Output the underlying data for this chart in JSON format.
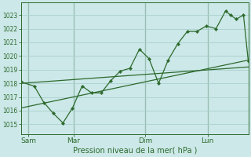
{
  "background_color": "#cce8e8",
  "grid_color": "#aacfcf",
  "line_color": "#2d6a2d",
  "ylabel": "Pression niveau de la mer( hPa )",
  "ylim": [
    1014.3,
    1023.9
  ],
  "yticks": [
    1015,
    1016,
    1017,
    1018,
    1019,
    1020,
    1021,
    1022,
    1023
  ],
  "xlim": [
    0,
    9.5
  ],
  "xtick_positions": [
    0.3,
    2.2,
    5.2,
    7.8
  ],
  "xtick_labels": [
    "Sam",
    "Mar",
    "Dim",
    "Lun"
  ],
  "vline_positions": [
    0.3,
    2.2,
    5.2,
    7.8
  ],
  "main_x": [
    0.0,
    0.55,
    0.95,
    1.35,
    1.75,
    2.15,
    2.55,
    2.95,
    3.35,
    3.75,
    4.15,
    4.55,
    4.95,
    5.35,
    5.75,
    6.15,
    6.55,
    6.95,
    7.35,
    7.75,
    8.15,
    8.55,
    8.75,
    9.0,
    9.3,
    9.5
  ],
  "main_y": [
    1018.1,
    1017.8,
    1016.6,
    1015.8,
    1015.1,
    1016.2,
    1017.8,
    1017.3,
    1017.3,
    1018.2,
    1018.9,
    1019.1,
    1020.5,
    1019.8,
    1018.0,
    1019.7,
    1020.9,
    1021.8,
    1021.8,
    1022.2,
    1022.0,
    1023.3,
    1023.0,
    1022.7,
    1023.0,
    1019.6
  ],
  "upper_line_x": [
    0.0,
    9.5
  ],
  "upper_line_y": [
    1018.0,
    1019.2
  ],
  "lower_line_x": [
    0.0,
    9.5
  ],
  "lower_line_y": [
    1016.2,
    1019.7
  ],
  "ytick_fontsize": 5.5,
  "xtick_fontsize": 6.5,
  "xlabel_fontsize": 7.0
}
